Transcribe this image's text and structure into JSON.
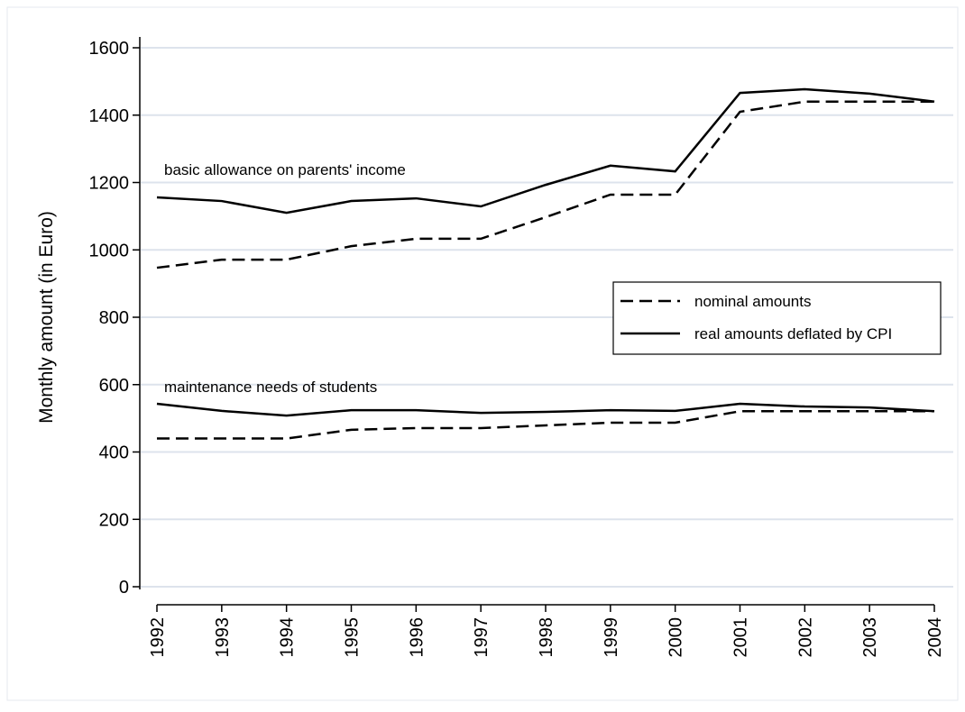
{
  "chart_data": {
    "type": "line",
    "y_label": "Monthly amount (in Euro)",
    "categories": [
      "1992",
      "1993",
      "1994",
      "1995",
      "1996",
      "1997",
      "1998",
      "1999",
      "2000",
      "2001",
      "2002",
      "2003",
      "2004"
    ],
    "ylim": [
      0,
      1600
    ],
    "yticks": [
      0,
      200,
      400,
      600,
      800,
      1000,
      1200,
      1400,
      1600
    ],
    "grid": true,
    "legend": "right",
    "series": [
      {
        "name": "nominal amounts",
        "color": "#000000",
        "dashed": true,
        "groups": [
          {
            "values": [
              947,
              971,
              971,
              1011,
              1033,
              1033,
              1097,
              1164,
              1164,
              1410,
              1440,
              1440,
              1440
            ]
          },
          {
            "values": [
              440,
              440,
              440,
              466,
              471,
              471,
              479,
              487,
              487,
              521,
              521,
              521,
              521
            ]
          }
        ]
      },
      {
        "name": "real amounts deflated by CPI",
        "color": "#000000",
        "dashed": false,
        "groups": [
          {
            "label": "basic allowance on parents' income",
            "values": [
              1156,
              1145,
              1110,
              1145,
              1153,
              1129,
              1193,
              1250,
              1233,
              1466,
              1477,
              1464,
              1440
            ]
          },
          {
            "label": "maintenance needs of students",
            "values": [
              543,
              522,
              508,
              524,
              524,
              516,
              519,
              524,
              522,
              543,
              535,
              532,
              521
            ]
          }
        ]
      }
    ]
  }
}
